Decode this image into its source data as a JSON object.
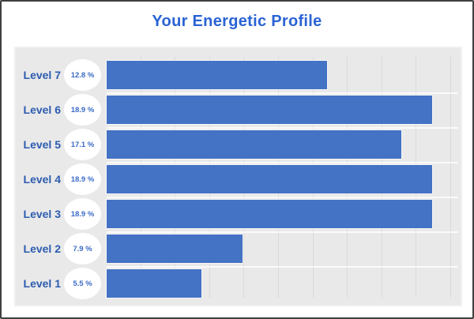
{
  "chart_data": {
    "type": "bar",
    "orientation": "horizontal",
    "title": "Your Energetic Profile",
    "categories": [
      "Level 7",
      "Level 6",
      "Level 5",
      "Level 4",
      "Level 3",
      "Level 2",
      "Level 1"
    ],
    "values": [
      12.8,
      18.9,
      17.1,
      18.9,
      18.9,
      7.9,
      5.5
    ],
    "value_labels": [
      "12.8 %",
      "18.9 %",
      "17.1 %",
      "18.9 %",
      "18.9 %",
      "7.9 %",
      "5.5 %"
    ],
    "unit": "%",
    "xlim": [
      0,
      20.4
    ],
    "grid": true,
    "legend": false,
    "colors": {
      "bar": "#4472c4",
      "title": "#2a63d4",
      "category_label": "#2c5cb0",
      "badge_text": "#3b6bc5",
      "badge_bg": "#ffffff",
      "panel_bg": "#e9e9e9",
      "gridline": "#d9d9d9"
    }
  }
}
